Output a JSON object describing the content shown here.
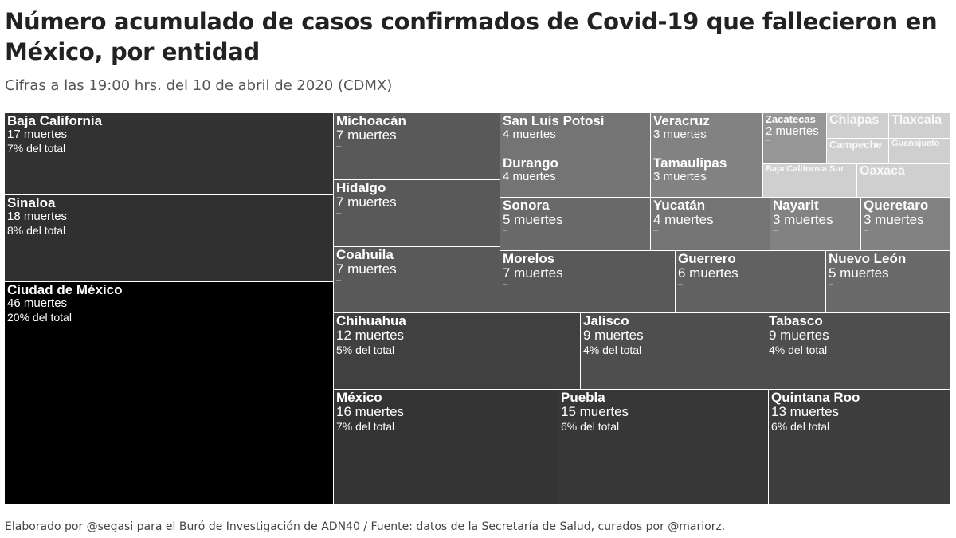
{
  "header": {
    "title": "Número acumulado de casos confirmados de Covid-19 que fallecieron en México, por entidad",
    "subtitle": "Cifras a las 19:00 hrs. del 10 de abril de 2020 (CDMX)"
  },
  "footer": {
    "credit": "Elaborado por @segasi  para el Buró de Investigación de ADN40 / Fuente: datos de la Secretaría de Salud, curados por @mariorz."
  },
  "chart_data": {
    "type": "treemap",
    "value_unit": "muertes",
    "colors": {
      "darkest": "#000000",
      "lightest": "#cfcfcf",
      "label": "#ffffff"
    },
    "items": [
      {
        "name": "Baja California",
        "value": 17,
        "value_label": "17 muertes",
        "share_label": "7% del total"
      },
      {
        "name": "Sinaloa",
        "value": 18,
        "value_label": "18 muertes",
        "share_label": "8% del total"
      },
      {
        "name": "Ciudad de México",
        "value": 46,
        "value_label": "46 muertes",
        "share_label": "20% del total"
      },
      {
        "name": "Michoacán",
        "value": 7,
        "value_label": "7 muertes",
        "share_label": ""
      },
      {
        "name": "Hidalgo",
        "value": 7,
        "value_label": "7 muertes",
        "share_label": ""
      },
      {
        "name": "Coahuila",
        "value": 7,
        "value_label": "7 muertes",
        "share_label": ""
      },
      {
        "name": "San Luis Potosí",
        "value": 4,
        "value_label": "4 muertes",
        "share_label": ""
      },
      {
        "name": "Veracruz",
        "value": 3,
        "value_label": "3 muertes",
        "share_label": ""
      },
      {
        "name": "Zacatecas",
        "value": 2,
        "value_label": "2 muertes",
        "share_label": ""
      },
      {
        "name": "Chiapas",
        "value": 1,
        "value_label": "",
        "share_label": ""
      },
      {
        "name": "Tlaxcala",
        "value": 1,
        "value_label": "",
        "share_label": ""
      },
      {
        "name": "Campeche",
        "value": 1,
        "value_label": "",
        "share_label": ""
      },
      {
        "name": "Guanajuato",
        "value": 1,
        "value_label": "",
        "share_label": ""
      },
      {
        "name": "Durango",
        "value": 4,
        "value_label": "4 muertes",
        "share_label": ""
      },
      {
        "name": "Tamaulipas",
        "value": 3,
        "value_label": "3 muertes",
        "share_label": ""
      },
      {
        "name": "Baja California Sur",
        "value": 1,
        "value_label": "",
        "share_label": ""
      },
      {
        "name": "Oaxaca",
        "value": 1,
        "value_label": "",
        "share_label": ""
      },
      {
        "name": "Sonora",
        "value": 5,
        "value_label": "5 muertes",
        "share_label": ""
      },
      {
        "name": "Yucatán",
        "value": 4,
        "value_label": "4 muertes",
        "share_label": ""
      },
      {
        "name": "Nayarit",
        "value": 3,
        "value_label": "3 muertes",
        "share_label": ""
      },
      {
        "name": "Queretaro",
        "value": 3,
        "value_label": "3 muertes",
        "share_label": ""
      },
      {
        "name": "Morelos",
        "value": 7,
        "value_label": "7 muertes",
        "share_label": ""
      },
      {
        "name": "Guerrero",
        "value": 6,
        "value_label": "6 muertes",
        "share_label": ""
      },
      {
        "name": "Nuevo León",
        "value": 5,
        "value_label": "5 muertes",
        "share_label": ""
      },
      {
        "name": "Chihuahua",
        "value": 12,
        "value_label": "12 muertes",
        "share_label": "5% del total"
      },
      {
        "name": "Jalisco",
        "value": 9,
        "value_label": "9 muertes",
        "share_label": "4% del total"
      },
      {
        "name": "Tabasco",
        "value": 9,
        "value_label": "9 muertes",
        "share_label": "4% del total"
      },
      {
        "name": "México",
        "value": 16,
        "value_label": "16 muertes",
        "share_label": "7% del total"
      },
      {
        "name": "Puebla",
        "value": 15,
        "value_label": "15 muertes",
        "share_label": "6% del total"
      },
      {
        "name": "Quintana Roo",
        "value": 13,
        "value_label": "13 muertes",
        "share_label": "6% del total"
      }
    ]
  }
}
